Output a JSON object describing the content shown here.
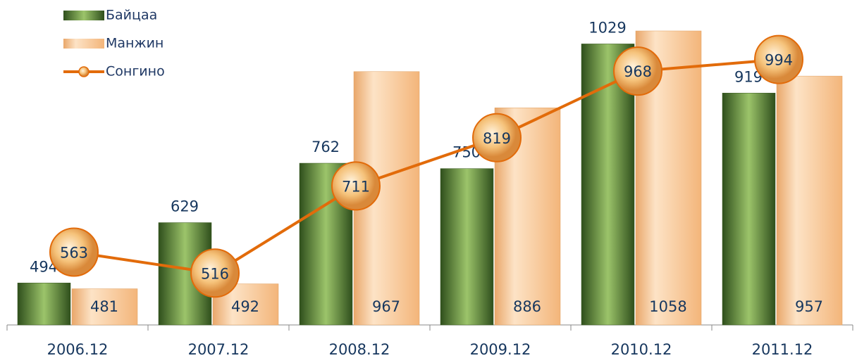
{
  "chart_data": {
    "type": "bar-line",
    "categories": [
      "2006.12",
      "2007.12",
      "2008.12",
      "2009.12",
      "2010.12",
      "2011.12"
    ],
    "series": [
      {
        "name": "Байцаа",
        "type": "bar",
        "color": "#5f8f3a",
        "values": [
          494,
          629,
          762,
          750,
          1029,
          919
        ]
      },
      {
        "name": "Манжин",
        "type": "bar",
        "color": "#f8c694",
        "values": [
          481,
          492,
          967,
          886,
          1058,
          957
        ]
      },
      {
        "name": "Сонгино",
        "type": "line",
        "color": "#e26b0a",
        "values": [
          563,
          516,
          711,
          819,
          968,
          994
        ]
      }
    ],
    "ylim": [
      400,
      1080
    ],
    "legend": "top-left"
  }
}
